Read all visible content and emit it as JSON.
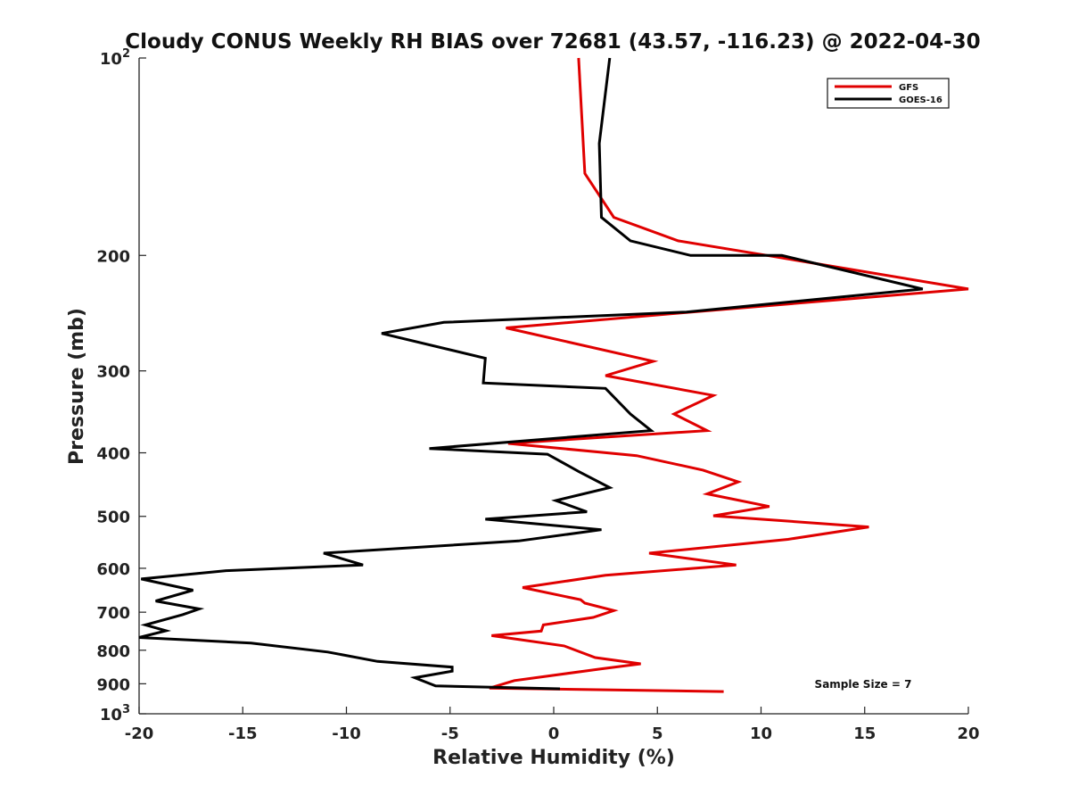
{
  "chart_data": {
    "type": "line",
    "title": "Cloudy CONUS Weekly RH BIAS over 72681 (43.57, -116.23) @ 2022-04-30",
    "xlabel": "Relative Humidity (%)",
    "ylabel": "Pressure (mb)",
    "xlim": [
      -20,
      20
    ],
    "ylim": [
      100,
      1000
    ],
    "y_scale": "log",
    "y_inverted": true,
    "grid": false,
    "legend_position": "top-right",
    "x_ticks": [
      {
        "value": -20,
        "label": "-20"
      },
      {
        "value": -15,
        "label": "-15"
      },
      {
        "value": -10,
        "label": "-10"
      },
      {
        "value": -5,
        "label": "-5"
      },
      {
        "value": 0,
        "label": "0"
      },
      {
        "value": 5,
        "label": "5"
      },
      {
        "value": 10,
        "label": "10"
      },
      {
        "value": 15,
        "label": "15"
      },
      {
        "value": 20,
        "label": "20"
      }
    ],
    "y_ticks": [
      {
        "value": 100,
        "label": "10",
        "sup": "2"
      },
      {
        "value": 200,
        "label": "200",
        "sup": ""
      },
      {
        "value": 300,
        "label": "300",
        "sup": ""
      },
      {
        "value": 400,
        "label": "400",
        "sup": ""
      },
      {
        "value": 500,
        "label": "500",
        "sup": ""
      },
      {
        "value": 600,
        "label": "600",
        "sup": ""
      },
      {
        "value": 700,
        "label": "700",
        "sup": ""
      },
      {
        "value": 800,
        "label": "800",
        "sup": ""
      },
      {
        "value": 900,
        "label": "900",
        "sup": ""
      },
      {
        "value": 1000,
        "label": "10",
        "sup": "3"
      }
    ],
    "annotation": "Sample Size = 7",
    "series": [
      {
        "name": "GFS",
        "color": "#e00000",
        "points": [
          [
            1.2,
            100
          ],
          [
            1.5,
            150
          ],
          [
            2.9,
            175
          ],
          [
            6.0,
            190
          ],
          [
            10.3,
            200
          ],
          [
            20.0,
            225
          ],
          [
            6.0,
            245
          ],
          [
            -2.3,
            258
          ],
          [
            4.8,
            290
          ],
          [
            2.5,
            305
          ],
          [
            7.7,
            327
          ],
          [
            5.8,
            349
          ],
          [
            7.4,
            370
          ],
          [
            -2.2,
            387
          ],
          [
            4.0,
            404
          ],
          [
            7.2,
            425
          ],
          [
            8.9,
            443
          ],
          [
            7.4,
            462
          ],
          [
            10.4,
            483
          ],
          [
            7.7,
            499
          ],
          [
            15.2,
            519
          ],
          [
            11.3,
            542
          ],
          [
            4.6,
            569
          ],
          [
            8.8,
            593
          ],
          [
            2.5,
            615
          ],
          [
            -1.5,
            642
          ],
          [
            1.3,
            670
          ],
          [
            1.5,
            678
          ],
          [
            2.9,
            696
          ],
          [
            1.9,
            713
          ],
          [
            -0.5,
            732
          ],
          [
            -0.6,
            748
          ],
          [
            -3.0,
            760
          ],
          [
            0.5,
            788
          ],
          [
            2.0,
            821
          ],
          [
            4.2,
            839
          ],
          [
            2.3,
            854
          ],
          [
            -1.9,
            890
          ],
          [
            -3.1,
            914
          ],
          [
            8.2,
            925
          ]
        ]
      },
      {
        "name": "GOES-16",
        "color": "#000000",
        "points": [
          [
            2.7,
            100
          ],
          [
            2.2,
            135
          ],
          [
            2.3,
            175
          ],
          [
            3.7,
            190
          ],
          [
            6.6,
            200
          ],
          [
            11.0,
            200
          ],
          [
            17.8,
            225
          ],
          [
            6.4,
            244
          ],
          [
            -5.3,
            253
          ],
          [
            -8.3,
            263
          ],
          [
            -3.3,
            287
          ],
          [
            -3.4,
            313
          ],
          [
            2.5,
            319
          ],
          [
            3.7,
            349
          ],
          [
            4.7,
            370
          ],
          [
            -6.0,
            394
          ],
          [
            -0.3,
            402
          ],
          [
            1.2,
            427
          ],
          [
            2.7,
            452
          ],
          [
            0.1,
            473
          ],
          [
            1.6,
            492
          ],
          [
            -3.3,
            505
          ],
          [
            2.3,
            524
          ],
          [
            -1.7,
            545
          ],
          [
            -11.1,
            569
          ],
          [
            -9.2,
            593
          ],
          [
            -15.8,
            605
          ],
          [
            -19.9,
            623
          ],
          [
            -17.4,
            648
          ],
          [
            -19.2,
            673
          ],
          [
            -17.1,
            692
          ],
          [
            -17.9,
            706
          ],
          [
            -19.7,
            732
          ],
          [
            -18.7,
            747
          ],
          [
            -20.0,
            765
          ],
          [
            -14.6,
            780
          ],
          [
            -10.9,
            805
          ],
          [
            -8.5,
            832
          ],
          [
            -4.9,
            849
          ],
          [
            -4.9,
            861
          ],
          [
            -6.7,
            881
          ],
          [
            -5.7,
            907
          ],
          [
            0.3,
            916
          ]
        ]
      }
    ]
  }
}
